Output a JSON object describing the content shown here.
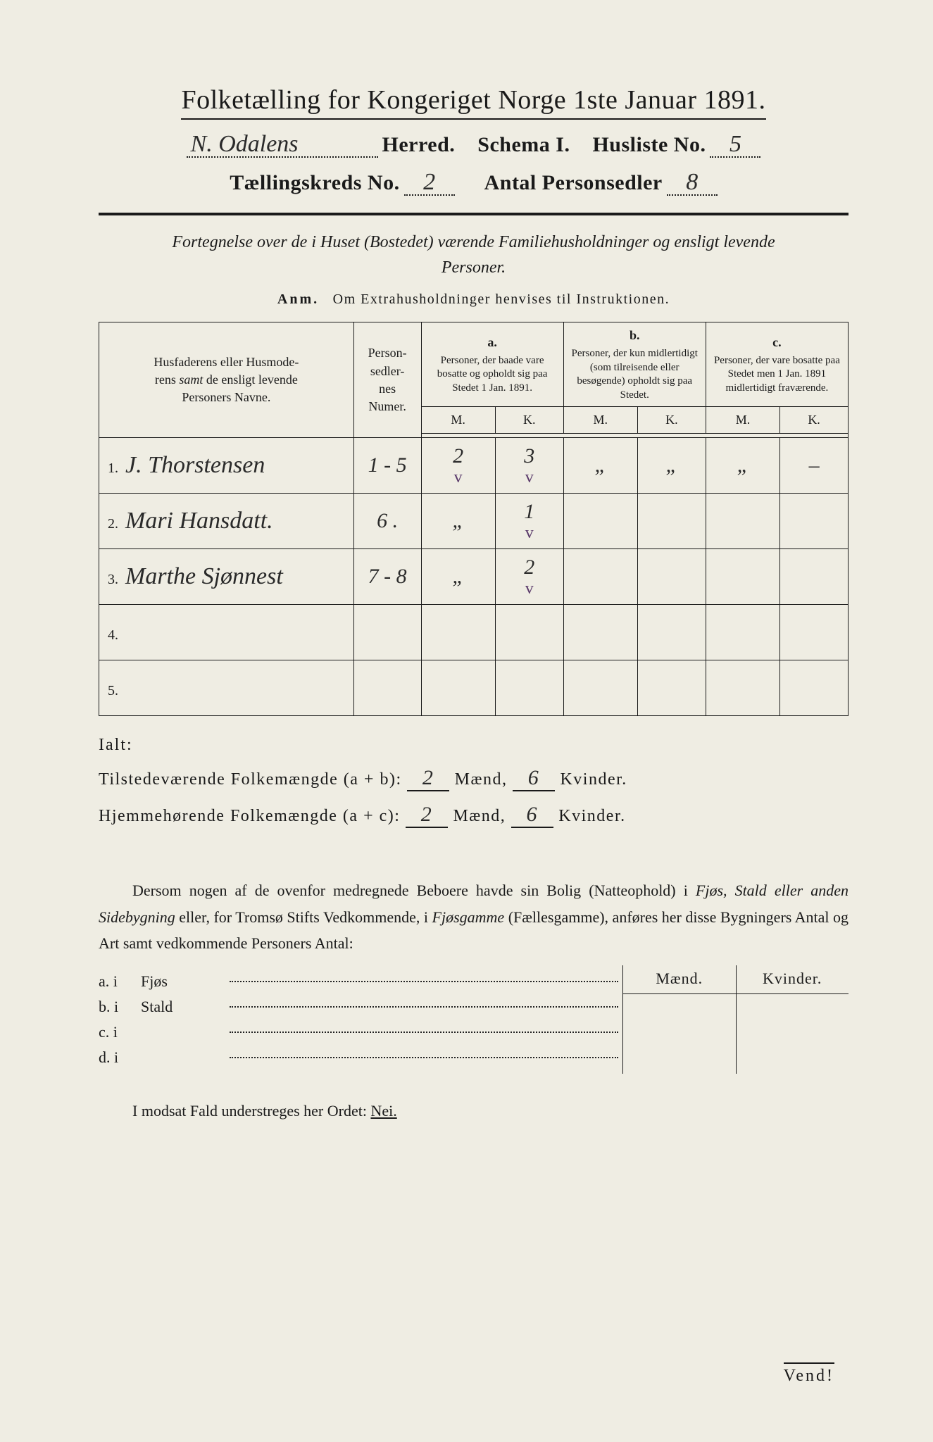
{
  "header": {
    "title": "Folketælling for Kongeriget Norge 1ste Januar 1891.",
    "herred_value": "N. Odalens",
    "herred_label": "Herred.",
    "schema_label": "Schema I.",
    "husliste_label": "Husliste No.",
    "husliste_value": "5",
    "kreds_label": "Tællingskreds No.",
    "kreds_value": "2",
    "sedler_label": "Antal Personsedler",
    "sedler_value": "8"
  },
  "subtitle": "Fortegnelse over de i Huset (Bostedet) værende Familiehusholdninger og ensligt levende Personer.",
  "anm": {
    "label": "Anm.",
    "text": "Om Extrahusholdninger henvises til Instruktionen."
  },
  "table": {
    "col_names_label1": "Husfaderens eller Husmode-",
    "col_names_label2_pre": "rens ",
    "col_names_label2_em": "samt",
    "col_names_label2_post": " de ensligt levende",
    "col_names_label3": "Personers Navne.",
    "col_numer_label": "Person-\nsedler-\nnes\nNumer.",
    "col_a": {
      "letter": "a.",
      "text": "Personer, der baade vare bosatte og opholdt sig paa Stedet 1 Jan. 1891."
    },
    "col_b": {
      "letter": "b.",
      "text": "Personer, der kun midlertidigt (som tilreisende eller besøgende) opholdt sig paa Stedet."
    },
    "col_c": {
      "letter": "c.",
      "text": "Personer, der vare bosatte paa Stedet men 1 Jan. 1891 midlertidigt fraværende."
    },
    "mk_m": "M.",
    "mk_k": "K.",
    "rows": [
      {
        "num": "1.",
        "name": "J. Thorstensen",
        "sedler": "1 - 5",
        "a_m": "2",
        "a_k": "3",
        "b_m": "„",
        "b_k": "„",
        "c_m": "„",
        "c_k": "–",
        "tick_m": "v",
        "tick_k": "v"
      },
      {
        "num": "2.",
        "name": "Mari Hansdatt.",
        "sedler": "6 .",
        "a_m": "„",
        "a_k": "1",
        "b_m": "",
        "b_k": "",
        "c_m": "",
        "c_k": "",
        "tick_m": "",
        "tick_k": "v"
      },
      {
        "num": "3.",
        "name": "Marthe Sjønnest",
        "sedler": "7 - 8",
        "a_m": "„",
        "a_k": "2",
        "b_m": "",
        "b_k": "",
        "c_m": "",
        "c_k": "",
        "tick_m": "",
        "tick_k": "v"
      },
      {
        "num": "4.",
        "name": "",
        "sedler": "",
        "a_m": "",
        "a_k": "",
        "b_m": "",
        "b_k": "",
        "c_m": "",
        "c_k": "",
        "tick_m": "",
        "tick_k": ""
      },
      {
        "num": "5.",
        "name": "",
        "sedler": "",
        "a_m": "",
        "a_k": "",
        "b_m": "",
        "b_k": "",
        "c_m": "",
        "c_k": "",
        "tick_m": "",
        "tick_k": ""
      }
    ]
  },
  "totals": {
    "ialt_label": "Ialt:",
    "line1_pre": "Tilstedeværende Folkemængde (a + b):",
    "line2_pre": "Hjemmehørende Folkemængde (a + c):",
    "maend_label": "Mænd,",
    "kvinder_label": "Kvinder.",
    "l1_m": "2",
    "l1_k": "6",
    "l2_m": "2",
    "l2_k": "6"
  },
  "lower_para": {
    "text_pre": "Dersom nogen af de ovenfor medregnede Beboere havde sin Bolig (Natteophold) i ",
    "em1": "Fjøs, Stald eller anden Sidebygning",
    "mid": " eller, for Tromsø Stifts Vedkommende, i ",
    "em2": "Fjøsgamme",
    "post": " (Fællesgamme), anføres her disse Bygningers Antal og Art samt vedkommende Personers Antal:"
  },
  "lower_table": {
    "header_m": "Mænd.",
    "header_k": "Kvinder.",
    "rows": [
      {
        "lab": "a.  i",
        "kind": "Fjøs"
      },
      {
        "lab": "b.  i",
        "kind": "Stald"
      },
      {
        "lab": "c.  i",
        "kind": ""
      },
      {
        "lab": "d.  i",
        "kind": ""
      }
    ]
  },
  "nei_line": {
    "pre": "I modsat Fald understreges her Ordet: ",
    "nei": "Nei."
  },
  "vend": "Vend!",
  "colors": {
    "page_bg": "#efede3",
    "ink": "#1a1a1a",
    "tick_purple": "#5a3a6a"
  }
}
